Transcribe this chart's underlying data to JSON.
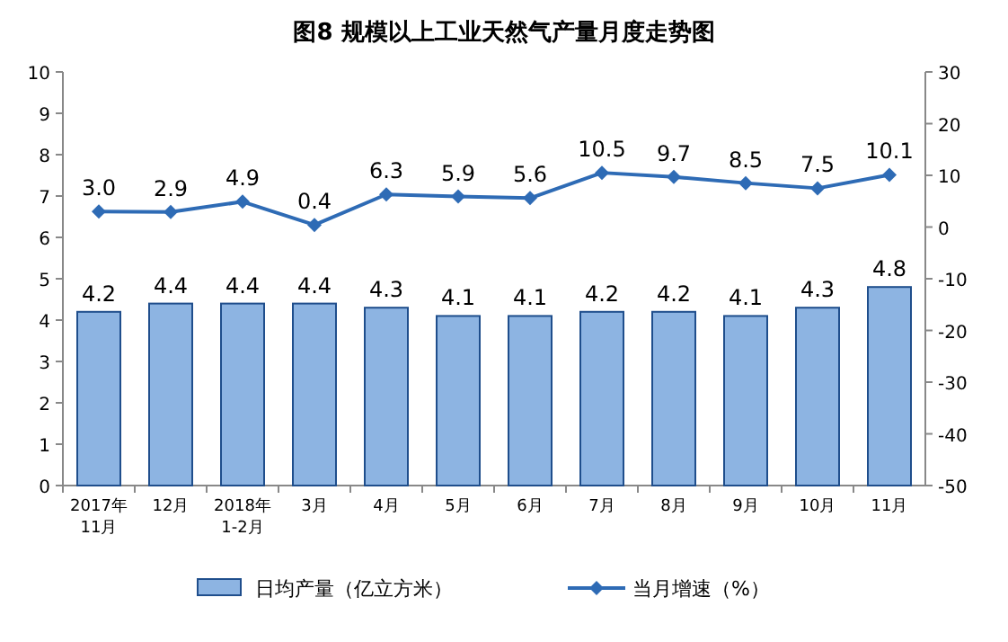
{
  "chart_data": {
    "type": "bar",
    "title": "图8  规模以上工业天然气产量月度走势图",
    "categories": [
      "2017年\n11月",
      "12月",
      "2018年\n1-2月",
      "3月",
      "4月",
      "5月",
      "6月",
      "7月",
      "8月",
      "9月",
      "10月",
      "11月"
    ],
    "ylim": [
      0,
      10
    ],
    "yticks": [
      0,
      1,
      2,
      3,
      4,
      5,
      6,
      7,
      8,
      9,
      10
    ],
    "y2lim": [
      -50,
      30
    ],
    "y2ticks": [
      -50,
      -40,
      -30,
      -20,
      -10,
      0,
      10,
      20,
      30
    ],
    "legend": "bottom",
    "series": [
      {
        "name": "日均产量（亿立方米）",
        "color": "#8db4e2",
        "values": [
          4.2,
          4.4,
          4.4,
          4.4,
          4.3,
          4.1,
          4.1,
          4.2,
          4.2,
          4.1,
          4.3,
          4.8
        ],
        "value_labels": [
          "4.2",
          "4.4",
          "4.4",
          "4.4",
          "4.3",
          "4.1",
          "4.1",
          "4.2",
          "4.2",
          "4.1",
          "4.3",
          "4.8"
        ]
      },
      {
        "name": "当月增速（%）",
        "type": "line",
        "axis": "y2",
        "marker": "diamond",
        "color": "#2e6bb5",
        "values": [
          3.0,
          2.9,
          4.9,
          0.4,
          6.3,
          5.9,
          5.6,
          10.5,
          9.7,
          8.5,
          7.5,
          10.1
        ],
        "value_labels": [
          "3.0",
          "2.9",
          "4.9",
          "0.4",
          "6.3",
          "5.9",
          "5.6",
          "10.5",
          "9.7",
          "8.5",
          "7.5",
          "10.1"
        ]
      }
    ]
  }
}
